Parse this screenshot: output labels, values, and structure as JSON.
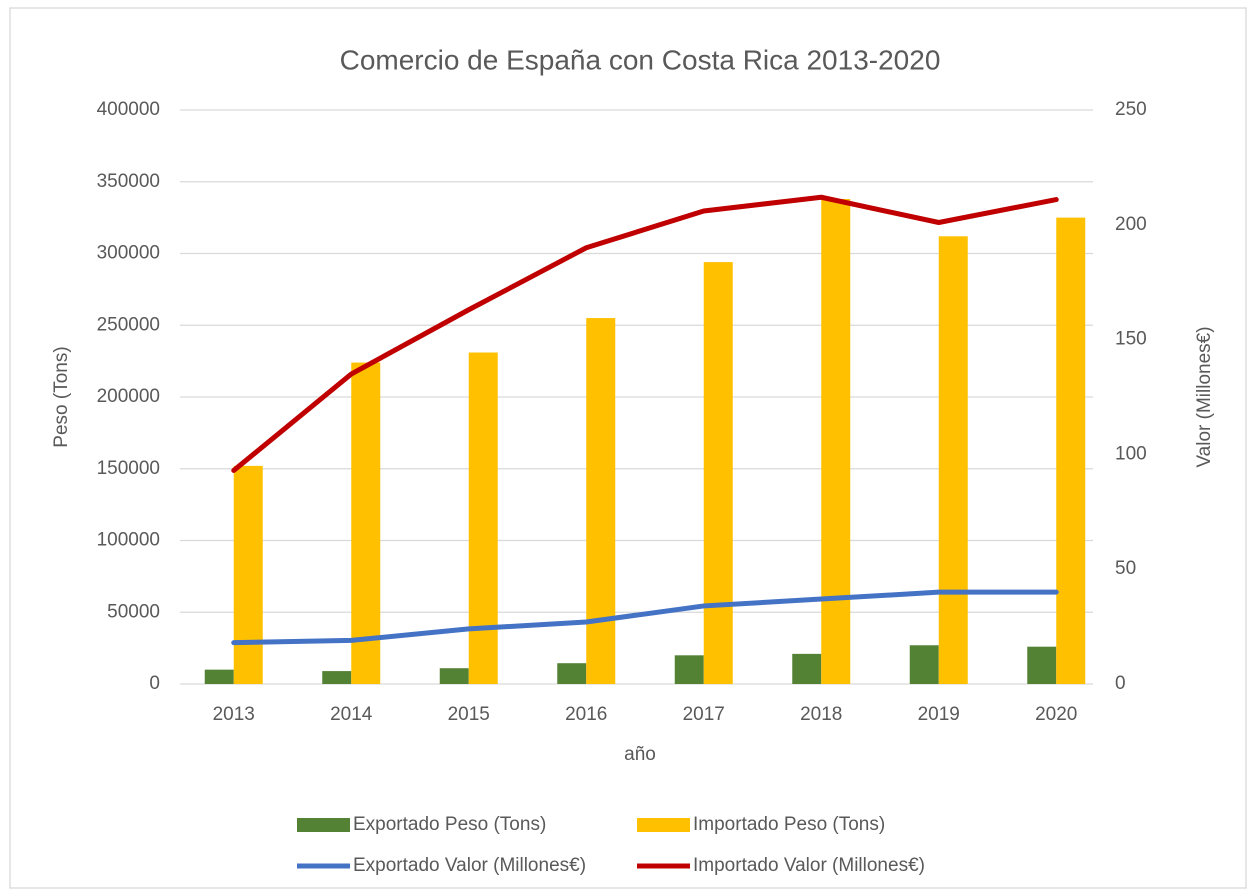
{
  "chart_data": {
    "type": "bar",
    "title": "Comercio de España con Costa Rica 2013-2020",
    "x_label": "año",
    "y_label": "Peso (Tons)",
    "y2_label": "Valor (Millones€)",
    "categories": [
      "2013",
      "2014",
      "2015",
      "2016",
      "2017",
      "2018",
      "2019",
      "2020"
    ],
    "series": [
      {
        "name": "Exportado Peso (Tons)",
        "type": "bar",
        "color": "#548235",
        "values": [
          10000,
          9000,
          11000,
          14500,
          20000,
          21000,
          27000,
          26000
        ]
      },
      {
        "name": "Importado Peso (Tons)",
        "type": "bar",
        "color": "#ffc000",
        "values": [
          152000,
          224000,
          231000,
          255000,
          294000,
          338000,
          312000,
          325000
        ]
      },
      {
        "name": "Exportado Valor (Millones€)",
        "type": "line",
        "axis": "y2",
        "color": "#4472c4",
        "values": [
          18,
          19,
          24,
          27,
          34,
          37,
          40,
          40
        ]
      },
      {
        "name": "Importado Valor (Millones€)",
        "type": "line",
        "axis": "y2",
        "color": "#c00000",
        "values": [
          93,
          135,
          163,
          190,
          206,
          212,
          201,
          211
        ]
      }
    ],
    "ylim": [
      0,
      400000
    ],
    "yticks": [
      0,
      50000,
      100000,
      150000,
      200000,
      250000,
      300000,
      350000,
      400000
    ],
    "y2lim": [
      0,
      250
    ],
    "y2ticks": [
      0,
      50,
      100,
      150,
      200,
      250
    ],
    "grid": true
  }
}
